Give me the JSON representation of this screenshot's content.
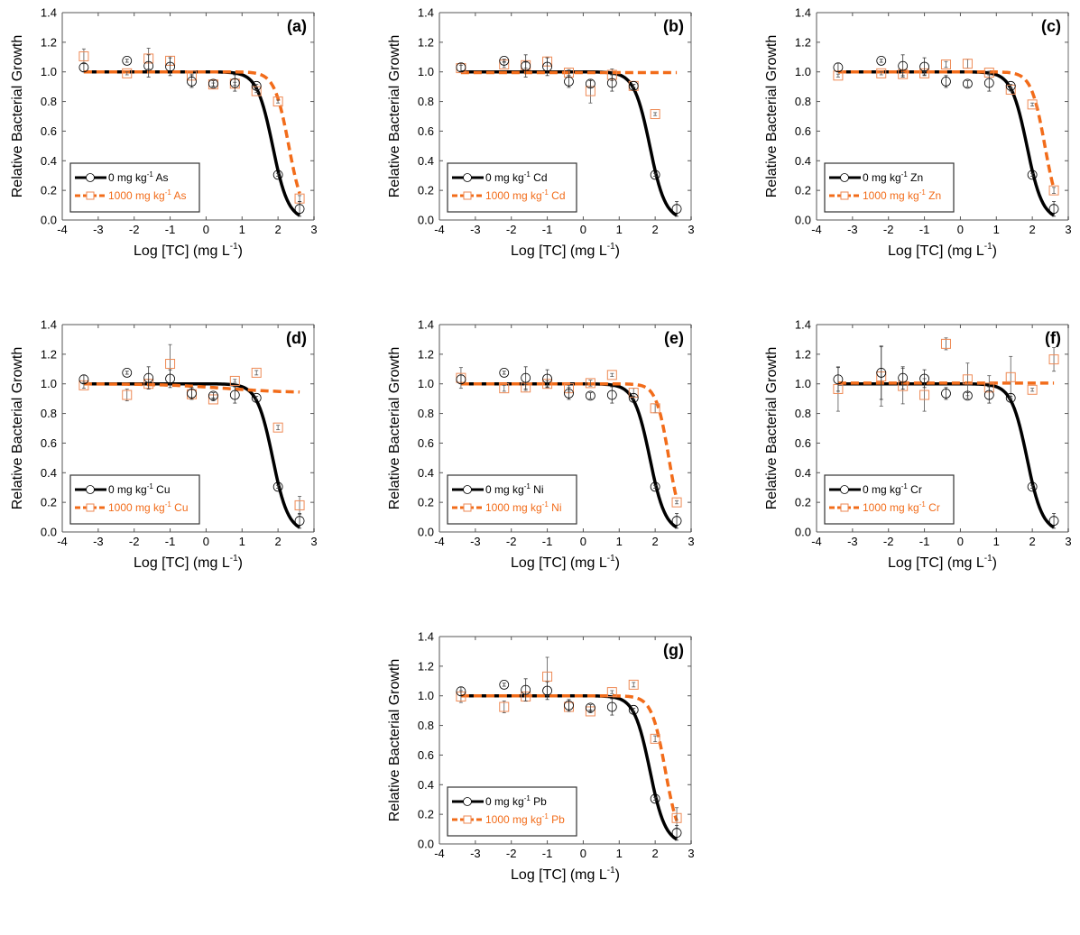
{
  "colors": {
    "control": "#000000",
    "treated_line": "#F26C1A",
    "treated_marker": "#EE8A55",
    "frame": "#555555",
    "frame_light": "#b5b5b5"
  },
  "chart_data": [
    {
      "type": "scatter",
      "panel_label": "(a)",
      "xlabel": "Log [TC] (mg L",
      "xlabel_sup": "-1",
      "xlabel_end": ")",
      "ylabel": "Relative Bacterial Growth",
      "xlim": [
        -4,
        3
      ],
      "ylim": [
        0,
        1.4
      ],
      "x_ticks": [
        "-4",
        "-3",
        "-2",
        "-1",
        "0",
        "1",
        "2",
        "3"
      ],
      "y_ticks": [
        "0.0",
        "0.2",
        "0.4",
        "0.6",
        "0.8",
        "1.0",
        "1.2",
        "1.4"
      ],
      "legend_placement": "lower-left",
      "series": [
        {
          "name": "0 mg kg",
          "name_sup": "-1",
          "name_end": " As",
          "marker": "circle",
          "line": "solid",
          "x": [
            -3.4,
            -2.2,
            -1.6,
            -1.0,
            -0.4,
            0.2,
            0.8,
            1.4,
            2.0,
            2.6
          ],
          "y": [
            1.03,
            1.075,
            1.04,
            1.035,
            0.935,
            0.92,
            0.925,
            0.905,
            0.305,
            0.075
          ],
          "err": [
            0.03,
            0.01,
            0.075,
            0.06,
            0.04,
            0.02,
            0.055,
            0.01,
            0.01,
            0.05
          ],
          "fit": {
            "top": 1.0,
            "bottom": 0.0,
            "log_ec50": 1.85,
            "slope": 2.0,
            "x_range": [
              -3.4,
              2.6
            ]
          }
        },
        {
          "name": "1000 mg kg",
          "name_sup": "-1",
          "name_end": " As",
          "marker": "square",
          "line": "dashed",
          "x": [
            -3.4,
            -2.2,
            -1.6,
            -1.0,
            -0.4,
            0.2,
            0.8,
            1.4,
            2.0,
            2.6
          ],
          "y": [
            1.105,
            0.99,
            1.09,
            1.075,
            0.975,
            0.915,
            0.92,
            0.87,
            0.8,
            0.145
          ],
          "err": [
            0.05,
            0.01,
            0.07,
            0.03,
            0.01,
            0.01,
            0.01,
            0.01,
            0.01,
            0.02
          ],
          "fit": {
            "top": 1.0,
            "bottom": 0.0,
            "log_ec50": 2.3,
            "slope": 2.2,
            "x_range": [
              -3.4,
              2.6
            ]
          }
        }
      ]
    },
    {
      "type": "scatter",
      "panel_label": "(b)",
      "xlabel": "Log [TC] (mg L",
      "xlabel_sup": "-1",
      "xlabel_end": ")",
      "ylabel": "Relative Bacterial Growth",
      "xlim": [
        -4,
        3
      ],
      "ylim": [
        0,
        1.4
      ],
      "x_ticks": [
        "-4",
        "-3",
        "-2",
        "-1",
        "0",
        "1",
        "2",
        "3"
      ],
      "y_ticks": [
        "0.0",
        "0.2",
        "0.4",
        "0.6",
        "0.8",
        "1.0",
        "1.2",
        "1.4"
      ],
      "legend_placement": "lower-left",
      "series": [
        {
          "name": "0 mg kg",
          "name_sup": "-1",
          "name_end": " Cd",
          "marker": "circle",
          "line": "solid",
          "x": [
            -3.4,
            -2.2,
            -1.6,
            -1.0,
            -0.4,
            0.2,
            0.8,
            1.4,
            2.0,
            2.6
          ],
          "y": [
            1.03,
            1.075,
            1.04,
            1.035,
            0.935,
            0.92,
            0.925,
            0.905,
            0.305,
            0.075
          ],
          "err": [
            0.03,
            0.01,
            0.075,
            0.06,
            0.04,
            0.02,
            0.055,
            0.01,
            0.01,
            0.05
          ],
          "fit": {
            "top": 1.0,
            "bottom": 0.0,
            "log_ec50": 1.85,
            "slope": 2.0,
            "x_range": [
              -3.4,
              2.6
            ]
          }
        },
        {
          "name": "1000 mg kg",
          "name_sup": "-1",
          "name_end": " Cd",
          "marker": "square",
          "line": "dashed",
          "x": [
            -3.4,
            -2.2,
            -1.6,
            -1.0,
            -0.4,
            0.2,
            0.8,
            1.4,
            2.0
          ],
          "y": [
            1.025,
            1.05,
            1.045,
            1.07,
            0.995,
            0.87,
            0.98,
            0.905,
            0.715
          ],
          "err": [
            0.02,
            0.02,
            0.02,
            0.03,
            0.02,
            0.08,
            0.04,
            0.01,
            0.01
          ],
          "fit": {
            "top": 0.995,
            "bottom": 0.995,
            "log_ec50": 5.0,
            "slope": 1.0,
            "x_range": [
              -3.4,
              2.6
            ]
          }
        }
      ]
    },
    {
      "type": "scatter",
      "panel_label": "(c)",
      "xlabel": "Log [TC] (mg L",
      "xlabel_sup": "-1",
      "xlabel_end": ")",
      "ylabel": "Relative Bacterial Growth",
      "xlim": [
        -4,
        3
      ],
      "ylim": [
        0,
        1.4
      ],
      "x_ticks": [
        "-4",
        "-3",
        "-2",
        "-1",
        "0",
        "1",
        "2",
        "3"
      ],
      "y_ticks": [
        "0.0",
        "0.2",
        "0.4",
        "0.6",
        "0.8",
        "1.0",
        "1.2",
        "1.4"
      ],
      "legend_placement": "lower-left",
      "series": [
        {
          "name": "0 mg kg",
          "name_sup": "-1",
          "name_end": " Zn",
          "marker": "circle",
          "line": "solid",
          "x": [
            -3.4,
            -2.2,
            -1.6,
            -1.0,
            -0.4,
            0.2,
            0.8,
            1.4,
            2.0,
            2.6
          ],
          "y": [
            1.03,
            1.075,
            1.04,
            1.035,
            0.935,
            0.92,
            0.925,
            0.905,
            0.305,
            0.075
          ],
          "err": [
            0.03,
            0.01,
            0.075,
            0.06,
            0.04,
            0.02,
            0.055,
            0.01,
            0.01,
            0.05
          ],
          "fit": {
            "top": 1.0,
            "bottom": 0.0,
            "log_ec50": 1.85,
            "slope": 2.0,
            "x_range": [
              -3.4,
              2.6
            ]
          }
        },
        {
          "name": "1000 mg kg",
          "name_sup": "-1",
          "name_end": " Zn",
          "marker": "square",
          "line": "dashed",
          "x": [
            -3.4,
            -2.2,
            -1.6,
            -1.0,
            -0.4,
            0.2,
            0.8,
            1.4,
            2.0,
            2.6
          ],
          "y": [
            0.975,
            0.99,
            0.985,
            0.99,
            1.05,
            1.055,
            0.995,
            0.88,
            0.78,
            0.2
          ],
          "err": [
            0.01,
            0.01,
            0.01,
            0.01,
            0.02,
            0.03,
            0.01,
            0.01,
            0.01,
            0.02
          ],
          "fit": {
            "top": 1.0,
            "bottom": 0.0,
            "log_ec50": 2.35,
            "slope": 2.3,
            "x_range": [
              -3.4,
              2.6
            ]
          }
        }
      ]
    },
    {
      "type": "scatter",
      "panel_label": "(d)",
      "xlabel": "Log [TC] (mg L",
      "xlabel_sup": "-1",
      "xlabel_end": ")",
      "ylabel": "Relative Bacterial Growth",
      "xlim": [
        -4,
        3
      ],
      "ylim": [
        0,
        1.4
      ],
      "x_ticks": [
        "-4",
        "-3",
        "-2",
        "-1",
        "0",
        "1",
        "2",
        "3"
      ],
      "y_ticks": [
        "0.0",
        "0.2",
        "0.4",
        "0.6",
        "0.8",
        "1.0",
        "1.2",
        "1.4"
      ],
      "legend_placement": "lower-left",
      "series": [
        {
          "name": "0 mg kg",
          "name_sup": "-1",
          "name_end": " Cu",
          "marker": "circle",
          "line": "solid",
          "x": [
            -3.4,
            -2.2,
            -1.6,
            -1.0,
            -0.4,
            0.2,
            0.8,
            1.4,
            2.0,
            2.6
          ],
          "y": [
            1.03,
            1.075,
            1.04,
            1.035,
            0.935,
            0.92,
            0.925,
            0.905,
            0.305,
            0.075
          ],
          "err": [
            0.03,
            0.01,
            0.075,
            0.06,
            0.04,
            0.02,
            0.055,
            0.01,
            0.01,
            0.05
          ],
          "fit": {
            "top": 1.0,
            "bottom": 0.0,
            "log_ec50": 1.85,
            "slope": 2.0,
            "x_range": [
              -3.4,
              2.6
            ]
          }
        },
        {
          "name": "1000 mg kg",
          "name_sup": "-1",
          "name_end": " Cu",
          "marker": "square",
          "line": "dashed",
          "x": [
            -3.4,
            -2.2,
            -1.6,
            -1.0,
            -0.4,
            0.2,
            0.8,
            1.4,
            2.0,
            2.6
          ],
          "y": [
            0.99,
            0.925,
            1.0,
            1.135,
            0.93,
            0.895,
            1.02,
            1.075,
            0.705,
            0.18
          ],
          "err": [
            0.02,
            0.04,
            0.03,
            0.13,
            0.03,
            0.01,
            0.01,
            0.015,
            0.015,
            0.06
          ],
          "fit": {
            "top": 1.0,
            "bottom": 0.94,
            "log_ec50": 0.5,
            "slope": 0.5,
            "x_range": [
              -3.4,
              2.6
            ]
          }
        }
      ]
    },
    {
      "type": "scatter",
      "panel_label": "(e)",
      "xlabel": "Log [TC] (mg L",
      "xlabel_sup": "-1",
      "xlabel_end": ")",
      "ylabel": "Relative Bacterial Growth",
      "xlim": [
        -4,
        3
      ],
      "ylim": [
        0,
        1.4
      ],
      "x_ticks": [
        "-4",
        "-3",
        "-2",
        "-1",
        "0",
        "1",
        "2",
        "3"
      ],
      "y_ticks": [
        "0.0",
        "0.2",
        "0.4",
        "0.6",
        "0.8",
        "1.0",
        "1.2",
        "1.4"
      ],
      "legend_placement": "lower-left",
      "series": [
        {
          "name": "0 mg kg",
          "name_sup": "-1",
          "name_end": " Ni",
          "marker": "circle",
          "line": "solid",
          "x": [
            -3.4,
            -2.2,
            -1.6,
            -1.0,
            -0.4,
            0.2,
            0.8,
            1.4,
            2.0,
            2.6
          ],
          "y": [
            1.03,
            1.075,
            1.04,
            1.035,
            0.935,
            0.92,
            0.925,
            0.905,
            0.305,
            0.075
          ],
          "err": [
            0.03,
            0.01,
            0.075,
            0.06,
            0.04,
            0.02,
            0.055,
            0.01,
            0.01,
            0.05
          ],
          "fit": {
            "top": 1.0,
            "bottom": 0.0,
            "log_ec50": 1.85,
            "slope": 2.0,
            "x_range": [
              -3.4,
              2.6
            ]
          }
        },
        {
          "name": "1000 mg kg",
          "name_sup": "-1",
          "name_end": " Ni",
          "marker": "square",
          "line": "dashed",
          "x": [
            -3.4,
            -2.2,
            -1.6,
            -1.0,
            -0.4,
            0.2,
            0.8,
            1.4,
            2.0,
            2.6
          ],
          "y": [
            1.04,
            0.97,
            0.975,
            1.0,
            0.97,
            1.005,
            1.06,
            0.94,
            0.835,
            0.2
          ],
          "err": [
            0.07,
            0.02,
            0.02,
            0.02,
            0.02,
            0.02,
            0.01,
            0.03,
            0.03,
            0.01
          ],
          "fit": {
            "top": 1.0,
            "bottom": 0.0,
            "log_ec50": 2.38,
            "slope": 2.5,
            "x_range": [
              -3.4,
              2.6
            ]
          }
        }
      ]
    },
    {
      "type": "scatter",
      "panel_label": "(f)",
      "xlabel": "Log [TC] (mg L",
      "xlabel_sup": "-1",
      "xlabel_end": ")",
      "ylabel": "Relative Bacterial Growth",
      "xlim": [
        -4,
        3
      ],
      "ylim": [
        0,
        1.4
      ],
      "x_ticks": [
        "-4",
        "-3",
        "-2",
        "-1",
        "0",
        "1",
        "2",
        "3"
      ],
      "y_ticks": [
        "0.0",
        "0.2",
        "0.4",
        "0.6",
        "0.8",
        "1.0",
        "1.2",
        "1.4"
      ],
      "legend_placement": "lower-left",
      "series": [
        {
          "name": "0 mg kg",
          "name_sup": "-1",
          "name_end": " Cr",
          "marker": "circle",
          "line": "solid",
          "x": [
            -3.4,
            -2.2,
            -1.6,
            -1.0,
            -0.4,
            0.2,
            0.8,
            1.4,
            2.0,
            2.6
          ],
          "y": [
            1.03,
            1.075,
            1.04,
            1.035,
            0.935,
            0.92,
            0.925,
            0.905,
            0.305,
            0.075
          ],
          "err": [
            0.08,
            0.18,
            0.075,
            0.06,
            0.04,
            0.02,
            0.055,
            0.01,
            0.01,
            0.05
          ],
          "fit": {
            "top": 1.0,
            "bottom": 0.0,
            "log_ec50": 1.85,
            "slope": 2.0,
            "x_range": [
              -3.4,
              2.6
            ]
          }
        },
        {
          "name": "1000 mg kg",
          "name_sup": "-1",
          "name_end": " Cr",
          "marker": "square",
          "line": "dashed",
          "x": [
            -3.4,
            -2.2,
            -1.6,
            -1.0,
            -0.4,
            0.2,
            0.8,
            1.4,
            2.0,
            2.6
          ],
          "y": [
            0.965,
            1.05,
            0.985,
            0.925,
            1.27,
            1.03,
            0.975,
            1.045,
            0.96,
            1.165
          ],
          "err": [
            0.15,
            0.2,
            0.12,
            0.11,
            0.04,
            0.11,
            0.08,
            0.14,
            0.01,
            0.08
          ],
          "fit": {
            "top": 1.005,
            "bottom": 1.005,
            "log_ec50": 5.0,
            "slope": 1.0,
            "x_range": [
              -3.4,
              2.6
            ]
          }
        }
      ]
    },
    {
      "type": "scatter",
      "panel_label": "(g)",
      "xlabel": "Log [TC] (mg L",
      "xlabel_sup": "-1",
      "xlabel_end": ")",
      "ylabel": "Relative Bacterial Growth",
      "xlim": [
        -4,
        3
      ],
      "ylim": [
        0,
        1.4
      ],
      "x_ticks": [
        "-4",
        "-3",
        "-2",
        "-1",
        "0",
        "1",
        "2",
        "3"
      ],
      "y_ticks": [
        "0.0",
        "0.2",
        "0.4",
        "0.6",
        "0.8",
        "1.0",
        "1.2",
        "1.4"
      ],
      "legend_placement": "lower-left",
      "series": [
        {
          "name": "0 mg kg",
          "name_sup": "-1",
          "name_end": " Pb",
          "marker": "circle",
          "line": "solid",
          "x": [
            -3.4,
            -2.2,
            -1.6,
            -1.0,
            -0.4,
            0.2,
            0.8,
            1.4,
            2.0,
            2.6
          ],
          "y": [
            1.03,
            1.075,
            1.04,
            1.035,
            0.935,
            0.92,
            0.925,
            0.905,
            0.305,
            0.075
          ],
          "err": [
            0.03,
            0.01,
            0.075,
            0.06,
            0.04,
            0.02,
            0.055,
            0.01,
            0.01,
            0.05
          ],
          "fit": {
            "top": 1.0,
            "bottom": 0.0,
            "log_ec50": 1.85,
            "slope": 2.0,
            "x_range": [
              -3.4,
              2.6
            ]
          }
        },
        {
          "name": "1000 mg kg",
          "name_sup": "-1",
          "name_end": " Pb",
          "marker": "square",
          "line": "dashed",
          "x": [
            -3.4,
            -2.2,
            -1.6,
            -1.0,
            -0.4,
            0.2,
            0.8,
            1.4,
            2.0,
            2.6
          ],
          "y": [
            0.995,
            0.925,
            0.995,
            1.13,
            0.925,
            0.895,
            1.025,
            1.075,
            0.71,
            0.175
          ],
          "err": [
            0.04,
            0.04,
            0.03,
            0.13,
            0.03,
            0.01,
            0.01,
            0.015,
            0.02,
            0.07
          ],
          "fit": {
            "top": 1.0,
            "bottom": 0.0,
            "log_ec50": 2.28,
            "slope": 2.3,
            "x_range": [
              -3.4,
              2.6
            ]
          }
        }
      ]
    }
  ]
}
